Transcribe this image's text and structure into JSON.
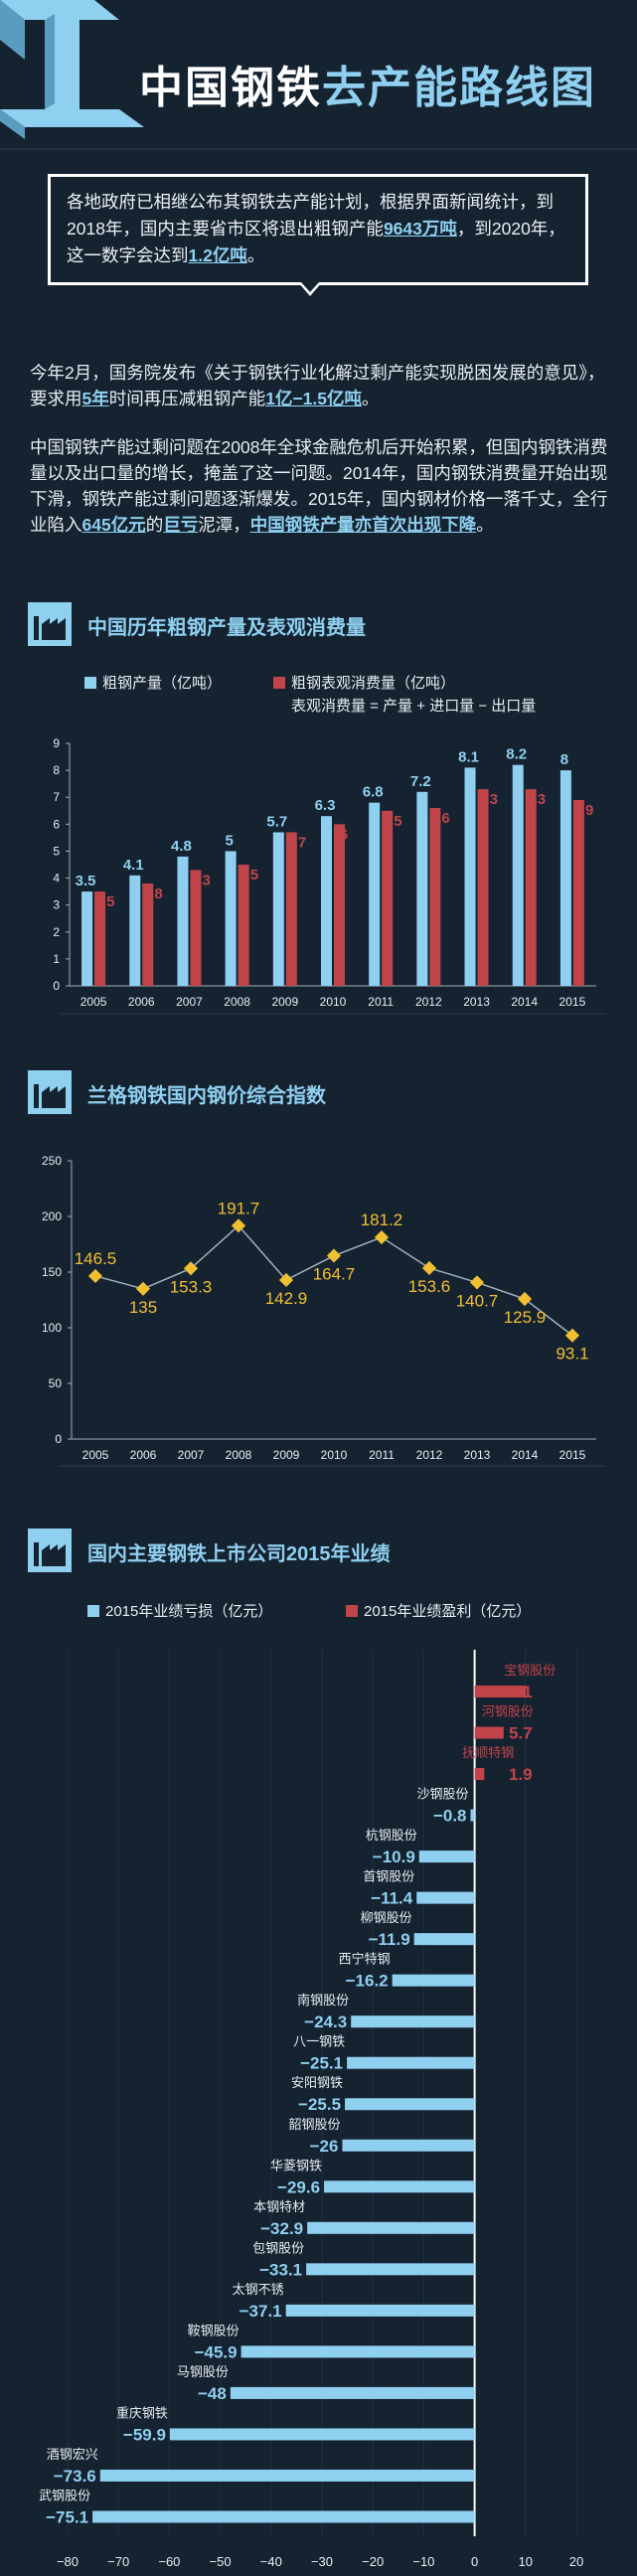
{
  "header": {
    "title_part1": "中国钢铁",
    "title_part2": "去产能路线图"
  },
  "intro_box": {
    "text1": "各地政府已相继公布其钢铁去产能计划，根据界面新闻统计，到2018年，国内主要省市区将退出粗钢产能",
    "highlight1": "9643万吨",
    "text2": "，到2020年，这一数字会达到",
    "highlight2": "1.2亿吨",
    "text3": "。"
  },
  "para1": {
    "text1": "今年2月，国务院发布《关于钢铁行业化解过剩产能实现脱困发展的意见》，要求用",
    "highlight1": "5年",
    "text2": "时间再压减粗钢产能",
    "highlight2": "1亿−1.5亿吨",
    "text3": "。"
  },
  "para2": {
    "text1": "中国钢铁产能过剩问题在2008年全球金融危机后开始积累，但国内钢铁消费量以及出口量的增长，掩盖了这一问题。2014年，国内钢铁消费量开始出现下滑，钢铁产能过剩问题逐渐爆发。2015年，国内钢材价格一落千丈，全行业陷入",
    "highlight1": "645亿元",
    "text2": "的",
    "highlight2": "巨亏",
    "text3": "泥潭，",
    "highlight3": "中国钢铁产量亦首次出现下降",
    "text4": "。"
  },
  "section1": {
    "title": "中国历年粗钢产量及表观消费量"
  },
  "section2": {
    "title": "兰格钢铁国内钢价综合指数"
  },
  "section3": {
    "title": "国内主要钢铁上市公司2015年业绩"
  },
  "colors": {
    "blue": "#8fd0f0",
    "red": "#c0444a",
    "gold": "#f0c030",
    "bg": "#152230"
  },
  "chart_data": [
    {
      "type": "bar",
      "title": "中国历年粗钢产量及表观消费量",
      "legend": [
        "粗钢产量（亿吨）",
        "粗钢表观消费量（亿吨）"
      ],
      "note": "表观消费量 = 产量 + 进口量 − 出口量",
      "categories": [
        "2005",
        "2006",
        "2007",
        "2008",
        "2009",
        "2010",
        "2011",
        "2012",
        "2013",
        "2014",
        "2015"
      ],
      "series": [
        {
          "name": "粗钢产量（亿吨）",
          "values": [
            3.5,
            4.1,
            4.8,
            5,
            5.7,
            6.3,
            6.8,
            7.2,
            8.1,
            8.2,
            8
          ]
        },
        {
          "name": "粗钢表观消费量（亿吨）",
          "values": [
            3.5,
            3.8,
            4.3,
            4.5,
            5.7,
            6,
            6.5,
            6.6,
            7.3,
            7.3,
            6.9
          ]
        }
      ],
      "yticks": [
        "0",
        "1",
        "2",
        "3",
        "4",
        "5",
        "6",
        "7",
        "8",
        "9"
      ],
      "ylim": [
        0,
        9
      ]
    },
    {
      "type": "line",
      "title": "兰格钢铁国内钢价综合指数",
      "categories": [
        "2005",
        "2006",
        "2007",
        "2008",
        "2009",
        "2010",
        "2011",
        "2012",
        "2013",
        "2014",
        "2015"
      ],
      "values": [
        146.5,
        135,
        153.3,
        191.7,
        142.9,
        164.7,
        181.2,
        153.6,
        140.7,
        125.9,
        93.1
      ],
      "yticks": [
        "0",
        "50",
        "100",
        "150",
        "200",
        "250"
      ],
      "ylim": [
        0,
        250
      ]
    },
    {
      "type": "bar",
      "orientation": "horizontal",
      "title": "国内主要钢铁上市公司2015年业绩",
      "legend": [
        "2015年业绩亏损（亿元）",
        "2015年业绩盈利（亿元）"
      ],
      "categories": [
        "宝钢股份",
        "河钢股份",
        "抚顺特钢",
        "沙钢股份",
        "杭钢股份",
        "首钢股份",
        "柳钢股份",
        "西宁特钢",
        "南钢股份",
        "八一钢铁",
        "安阳钢铁",
        "韶钢股份",
        "华菱钢铁",
        "本钢特材",
        "包钢股份",
        "太钢不锈",
        "鞍钢股份",
        "马钢股份",
        "重庆钢铁",
        "酒钢宏兴",
        "武钢股份"
      ],
      "values": [
        10.1,
        5.7,
        1.9,
        -0.8,
        -10.9,
        -11.4,
        -11.9,
        -16.2,
        -24.3,
        -25.1,
        -25.5,
        -26,
        -29.6,
        -32.9,
        -33.1,
        -37.1,
        -45.9,
        -48,
        -59.9,
        -73.6,
        -75.1
      ],
      "value_labels": [
        "10.1",
        "5.7",
        "1.9",
        "−0.8",
        "−10.9",
        "−11.4",
        "−11.9",
        "−16.2",
        "−24.3",
        "−25.1",
        "−25.5",
        "−26",
        "−29.6",
        "−32.9",
        "−33.1",
        "−37.1",
        "−45.9",
        "−48",
        "−59.9",
        "−73.6",
        "−75.1"
      ],
      "xticks": [
        "−80",
        "−70",
        "−60",
        "−50",
        "−40",
        "−30",
        "−20",
        "−10",
        "0",
        "10",
        "20"
      ],
      "xlim": [
        -80,
        20
      ]
    }
  ]
}
